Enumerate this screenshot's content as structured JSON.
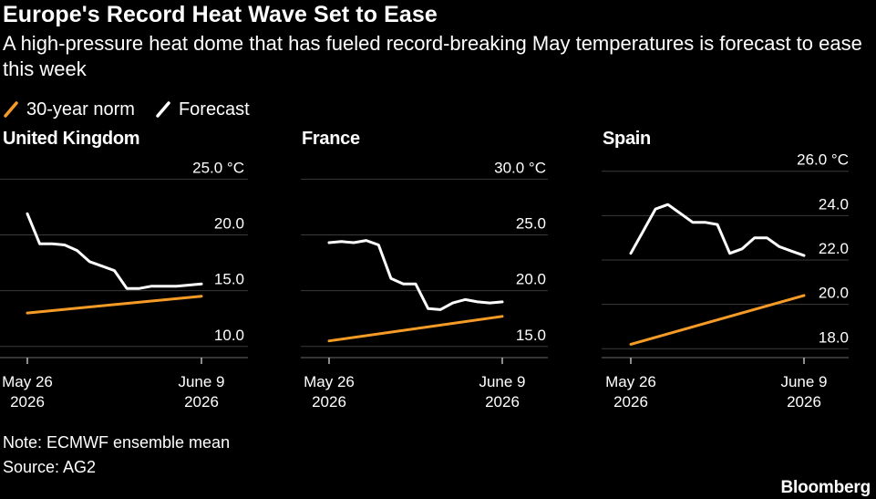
{
  "header": {
    "title": "Europe's Record Heat Wave Set to Ease",
    "subtitle": "A high-pressure heat dome that has fueled record-breaking May temperatures is forecast to ease this week"
  },
  "legend": {
    "items": [
      {
        "label": "30-year norm",
        "color": "#f59b26"
      },
      {
        "label": "Forecast",
        "color": "#ffffff"
      }
    ]
  },
  "footer": {
    "note": "Note: ECMWF ensemble mean",
    "source": "Source: AG2",
    "brand": "Bloomberg"
  },
  "chart_data": [
    {
      "type": "line",
      "title": "United Kingdom",
      "y_unit": "°C",
      "yticks": [
        10,
        15,
        20,
        25
      ],
      "ytick_labels": [
        "10.0",
        "15.0",
        "20.0",
        "25.0 °C"
      ],
      "ylim": [
        9,
        26.5
      ],
      "x_first_label": [
        "May 26",
        "2026"
      ],
      "x_last_label": [
        "June 9",
        "2026"
      ],
      "x_start": "2026-05-26",
      "x_end": "2026-06-09",
      "series": [
        {
          "name": "Forecast",
          "color": "#ffffff",
          "x": [
            "2026-05-26",
            "2026-05-27",
            "2026-05-28",
            "2026-05-29",
            "2026-05-30",
            "2026-05-31",
            "2026-06-01",
            "2026-06-02",
            "2026-06-03",
            "2026-06-04",
            "2026-06-05",
            "2026-06-06",
            "2026-06-07",
            "2026-06-08",
            "2026-06-09"
          ],
          "values": [
            21.9,
            19.2,
            19.2,
            19.1,
            18.6,
            17.6,
            17.2,
            16.8,
            15.2,
            15.2,
            15.4,
            15.4,
            15.4,
            15.5,
            15.6
          ]
        },
        {
          "name": "30-year norm",
          "color": "#f59b26",
          "x": [
            "2026-05-26",
            "2026-06-09"
          ],
          "values": [
            13.0,
            14.5
          ]
        }
      ]
    },
    {
      "type": "line",
      "title": "France",
      "y_unit": "°C",
      "yticks": [
        15,
        20,
        25,
        30
      ],
      "ytick_labels": [
        "15.0",
        "20.0",
        "25.0",
        "30.0 °C"
      ],
      "ylim": [
        14,
        31.5
      ],
      "x_first_label": [
        "May 26",
        "2026"
      ],
      "x_last_label": [
        "June 9",
        "2026"
      ],
      "x_start": "2026-05-26",
      "x_end": "2026-06-09",
      "series": [
        {
          "name": "Forecast",
          "color": "#ffffff",
          "x": [
            "2026-05-26",
            "2026-05-27",
            "2026-05-28",
            "2026-05-29",
            "2026-05-30",
            "2026-05-31",
            "2026-06-01",
            "2026-06-02",
            "2026-06-03",
            "2026-06-04",
            "2026-06-05",
            "2026-06-06",
            "2026-06-07",
            "2026-06-08",
            "2026-06-09"
          ],
          "values": [
            24.3,
            24.4,
            24.3,
            24.5,
            24.1,
            21.1,
            20.6,
            20.6,
            18.4,
            18.3,
            18.9,
            19.2,
            19.0,
            18.9,
            19.0
          ]
        },
        {
          "name": "30-year norm",
          "color": "#f59b26",
          "x": [
            "2026-05-26",
            "2026-06-09"
          ],
          "values": [
            15.5,
            17.7
          ]
        }
      ]
    },
    {
      "type": "line",
      "title": "Spain",
      "y_unit": "°C",
      "yticks": [
        18,
        20,
        22,
        24,
        26
      ],
      "ytick_labels": [
        "18.0",
        "20.0",
        "22.0",
        "24.0",
        "26.0 °C"
      ],
      "ylim": [
        17.6,
        26.4
      ],
      "x_first_label": [
        "May 26",
        "2026"
      ],
      "x_last_label": [
        "June 9",
        "2026"
      ],
      "x_start": "2026-05-26",
      "x_end": "2026-06-09",
      "series": [
        {
          "name": "Forecast",
          "color": "#ffffff",
          "x": [
            "2026-05-26",
            "2026-05-27",
            "2026-05-28",
            "2026-05-29",
            "2026-05-30",
            "2026-05-31",
            "2026-06-01",
            "2026-06-02",
            "2026-06-03",
            "2026-06-04",
            "2026-06-05",
            "2026-06-06",
            "2026-06-07",
            "2026-06-08",
            "2026-06-09"
          ],
          "values": [
            22.3,
            23.3,
            24.3,
            24.5,
            24.1,
            23.7,
            23.7,
            23.6,
            22.3,
            22.5,
            23.0,
            23.0,
            22.6,
            22.4,
            22.2
          ]
        },
        {
          "name": "30-year norm",
          "color": "#f59b26",
          "x": [
            "2026-05-26",
            "2026-06-09"
          ],
          "values": [
            18.2,
            20.4
          ]
        }
      ]
    }
  ]
}
